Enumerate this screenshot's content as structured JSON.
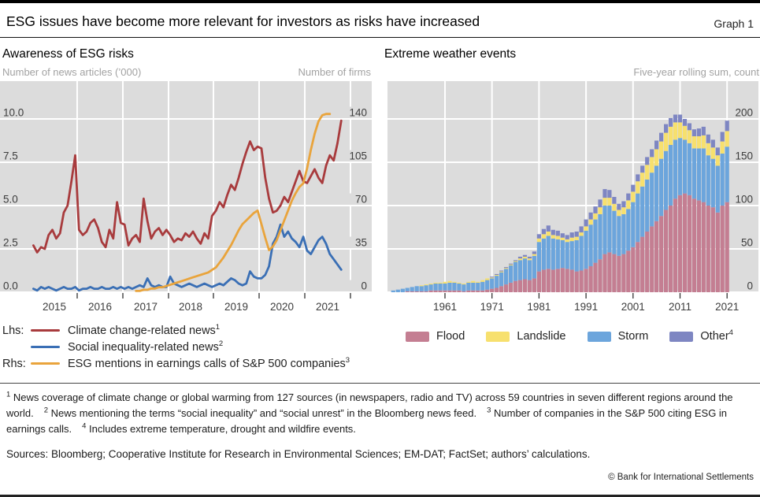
{
  "header": {
    "title": "ESG issues have become more relevant for investors as risks have increased",
    "graph_label": "Graph 1"
  },
  "colors": {
    "plot_bg": "#dcdcdc",
    "gridline": "#ffffff",
    "tick_text": "#3d3d3d",
    "climate_red": "#a83b3d",
    "inequality_blue": "#3a6fb5",
    "esg_orange": "#e9a43c",
    "flood": "#c47e92",
    "landslide": "#f7e06e",
    "storm": "#6ca5dc",
    "other": "#7e86c2"
  },
  "left_panel": {
    "title": "Awareness of ESG risks",
    "unit_left": "Number of news articles (’000)",
    "unit_right": "Number of firms",
    "legend": {
      "rows": [
        {
          "prefix": "Lhs:",
          "label": "Climate change-related news",
          "sup": "1"
        },
        {
          "prefix": "",
          "label": "Social inequality-related news",
          "sup": "2"
        },
        {
          "prefix": "Rhs:",
          "label": "ESG mentions in earnings calls of S&P 500 companies",
          "sup": "3"
        }
      ]
    }
  },
  "right_panel": {
    "title": "Extreme weather events",
    "unit_right": "Five-year rolling sum, count",
    "legend": [
      {
        "label": "Flood",
        "sup": ""
      },
      {
        "label": "Landslide",
        "sup": ""
      },
      {
        "label": "Storm",
        "sup": ""
      },
      {
        "label": "Other",
        "sup": "4"
      }
    ]
  },
  "chart_data": [
    {
      "type": "line",
      "title": "Awareness of ESG risks",
      "x_start": "2015-01",
      "x_end": "2021-10",
      "frequency": "monthly",
      "x_tick_labels": [
        "2015",
        "2016",
        "2017",
        "2018",
        "2019",
        "2020",
        "2021"
      ],
      "ylabel_left": "Number of news articles (’000)",
      "ylabel_right": "Number of firms",
      "ylim_left": [
        0,
        12.2
      ],
      "ylim_right": [
        0,
        170.8
      ],
      "yticks_left": [
        {
          "label": "10.0",
          "value": 10
        },
        {
          "label": "7.5",
          "value": 7.5
        },
        {
          "label": "5.0",
          "value": 5
        },
        {
          "label": "2.5",
          "value": 2.5
        },
        {
          "label": "0.0",
          "value": 0
        }
      ],
      "yticks_right": [
        {
          "label": "140",
          "value": 140
        },
        {
          "label": "105",
          "value": 105
        },
        {
          "label": "70",
          "value": 70
        },
        {
          "label": "35",
          "value": 35
        },
        {
          "label": "0",
          "value": 0
        }
      ],
      "series": [
        {
          "name": "Climate change-related news",
          "axis": "left",
          "color": "#a83b3d",
          "values": [
            2.7,
            2.3,
            2.6,
            2.5,
            3.3,
            3.6,
            3.1,
            3.4,
            4.6,
            5.0,
            6.4,
            7.9,
            3.6,
            3.3,
            3.5,
            4.0,
            4.2,
            3.7,
            2.9,
            2.6,
            3.6,
            3.1,
            5.2,
            4.0,
            3.9,
            2.7,
            3.1,
            3.3,
            2.9,
            5.4,
            4.1,
            3.1,
            3.5,
            3.7,
            3.3,
            3.6,
            3.3,
            2.9,
            3.1,
            3.0,
            3.4,
            3.2,
            3.5,
            3.1,
            2.8,
            3.4,
            3.1,
            4.4,
            4.7,
            5.2,
            4.9,
            5.6,
            6.2,
            5.9,
            6.6,
            7.4,
            8.1,
            8.7,
            8.2,
            8.4,
            8.3,
            6.6,
            5.4,
            4.6,
            4.7,
            5.0,
            5.5,
            5.2,
            5.8,
            6.4,
            7.0,
            6.4,
            6.3,
            6.7,
            7.1,
            6.6,
            6.3,
            7.3,
            7.9,
            7.6,
            8.6,
            9.9
          ]
        },
        {
          "name": "Social inequality-related news",
          "axis": "left",
          "color": "#3a6fb5",
          "values": [
            0.2,
            0.1,
            0.3,
            0.2,
            0.3,
            0.2,
            0.1,
            0.2,
            0.3,
            0.2,
            0.2,
            0.3,
            0.1,
            0.2,
            0.2,
            0.3,
            0.2,
            0.2,
            0.3,
            0.2,
            0.2,
            0.3,
            0.2,
            0.3,
            0.2,
            0.3,
            0.2,
            0.3,
            0.4,
            0.3,
            0.8,
            0.4,
            0.3,
            0.4,
            0.3,
            0.3,
            0.9,
            0.5,
            0.4,
            0.3,
            0.4,
            0.5,
            0.4,
            0.3,
            0.4,
            0.5,
            0.4,
            0.3,
            0.4,
            0.5,
            0.4,
            0.6,
            0.8,
            0.7,
            0.5,
            0.4,
            0.5,
            1.2,
            0.9,
            0.8,
            0.8,
            1.0,
            1.5,
            2.8,
            3.2,
            3.9,
            3.2,
            3.5,
            3.1,
            2.9,
            2.6,
            3.2,
            2.4,
            2.2,
            2.6,
            3.0,
            3.2,
            2.8,
            2.2,
            1.9,
            1.6,
            1.3
          ]
        },
        {
          "name": "ESG mentions in earnings calls of S&P 500 companies",
          "axis": "right",
          "color": "#e9a43c",
          "values": [
            null,
            null,
            null,
            null,
            null,
            null,
            null,
            null,
            null,
            null,
            null,
            null,
            null,
            null,
            null,
            null,
            null,
            null,
            null,
            null,
            null,
            null,
            null,
            null,
            null,
            null,
            null,
            1,
            1,
            2,
            2,
            3,
            3,
            4,
            4,
            5,
            6,
            7,
            8,
            9,
            10,
            11,
            12,
            13,
            14,
            15,
            16,
            18,
            20,
            24,
            28,
            33,
            38,
            44,
            50,
            55,
            58,
            61,
            64,
            66,
            55,
            44,
            34,
            37,
            42,
            50,
            58,
            66,
            74,
            80,
            85,
            88,
            100,
            115,
            128,
            138,
            143,
            144,
            144,
            null,
            null,
            null
          ]
        }
      ]
    },
    {
      "type": "stacked_bar",
      "title": "Extreme weather events",
      "note": "Five-year rolling sum, count",
      "year_start": 1950,
      "year_end": 2021,
      "x_tick_labels": [
        "1961",
        "1971",
        "1981",
        "1991",
        "2001",
        "2011",
        "2021"
      ],
      "ylim": [
        0,
        243
      ],
      "yticks": [
        {
          "label": "200",
          "value": 200
        },
        {
          "label": "150",
          "value": 150
        },
        {
          "label": "100",
          "value": 100
        },
        {
          "label": "50",
          "value": 50
        },
        {
          "label": "0",
          "value": 0
        }
      ],
      "series": [
        {
          "name": "Flood",
          "color": "#c47e92",
          "values": [
            0,
            0,
            0,
            1,
            1,
            1,
            1,
            1,
            2,
            2,
            2,
            2,
            2,
            2,
            2,
            1,
            2,
            2,
            2,
            2,
            3,
            4,
            5,
            7,
            9,
            11,
            13,
            14,
            15,
            14,
            16,
            24,
            26,
            27,
            26,
            27,
            28,
            27,
            26,
            24,
            25,
            27,
            30,
            34,
            38,
            44,
            46,
            44,
            42,
            44,
            48,
            52,
            58,
            64,
            70,
            76,
            82,
            88,
            95,
            100,
            108,
            112,
            114,
            112,
            108,
            106,
            104,
            100,
            98,
            92,
            100,
            104
          ]
        },
        {
          "name": "Landslide",
          "color": "#f7e06e",
          "values": [
            0,
            0,
            0,
            0,
            0,
            0,
            1,
            1,
            1,
            1,
            1,
            2,
            2,
            1,
            1,
            1,
            1,
            2,
            1,
            2,
            2,
            1,
            1,
            1,
            1,
            1,
            1,
            2,
            2,
            2,
            2,
            4,
            5,
            5,
            4,
            4,
            3,
            3,
            4,
            4,
            4,
            5,
            6,
            7,
            8,
            9,
            9,
            8,
            7,
            8,
            10,
            12,
            14,
            16,
            17,
            18,
            19,
            20,
            21,
            21,
            20,
            18,
            16,
            15,
            14,
            14,
            15,
            14,
            13,
            12,
            14,
            18
          ]
        },
        {
          "name": "Storm",
          "color": "#6ca5dc",
          "values": [
            2,
            3,
            4,
            4,
            5,
            6,
            6,
            7,
            7,
            8,
            8,
            8,
            9,
            9,
            8,
            8,
            9,
            9,
            9,
            10,
            11,
            12,
            14,
            16,
            18,
            20,
            22,
            23,
            24,
            23,
            26,
            34,
            36,
            38,
            36,
            34,
            32,
            31,
            33,
            36,
            40,
            44,
            48,
            50,
            52,
            56,
            54,
            50,
            46,
            46,
            48,
            52,
            56,
            58,
            60,
            62,
            64,
            66,
            68,
            70,
            68,
            66,
            62,
            60,
            58,
            60,
            62,
            58,
            56,
            54,
            60,
            64
          ]
        },
        {
          "name": "Other",
          "color": "#7e86c2",
          "values": [
            0,
            0,
            0,
            0,
            0,
            0,
            0,
            0,
            0,
            0,
            0,
            0,
            0,
            0,
            0,
            0,
            0,
            0,
            0,
            0,
            0,
            1,
            1,
            1,
            1,
            1,
            1,
            2,
            2,
            2,
            3,
            5,
            6,
            7,
            6,
            6,
            5,
            5,
            6,
            6,
            7,
            8,
            8,
            8,
            9,
            10,
            9,
            8,
            7,
            7,
            8,
            8,
            8,
            8,
            9,
            9,
            10,
            10,
            10,
            10,
            9,
            9,
            8,
            8,
            8,
            9,
            10,
            10,
            9,
            9,
            11,
            12
          ]
        }
      ]
    }
  ],
  "footnotes": [
    {
      "marker": "1",
      "text": "News coverage of climate change or global warming from 127 sources (in newspapers, radio and TV) across 59 countries in seven different regions around the world."
    },
    {
      "marker": "2",
      "text": "News mentioning the terms “social inequality” and “social unrest” in the Bloomberg news feed."
    },
    {
      "marker": "3",
      "text": "Number of companies in the S&P 500 citing ESG in earnings calls."
    },
    {
      "marker": "4",
      "text": "Includes extreme temperature, drought and wildfire events."
    }
  ],
  "sources": "Sources: Bloomberg; Cooperative Institute for Research in Environmental Sciences; EM-DAT; FactSet; authors’ calculations.",
  "copyright": "© Bank for International Settlements"
}
